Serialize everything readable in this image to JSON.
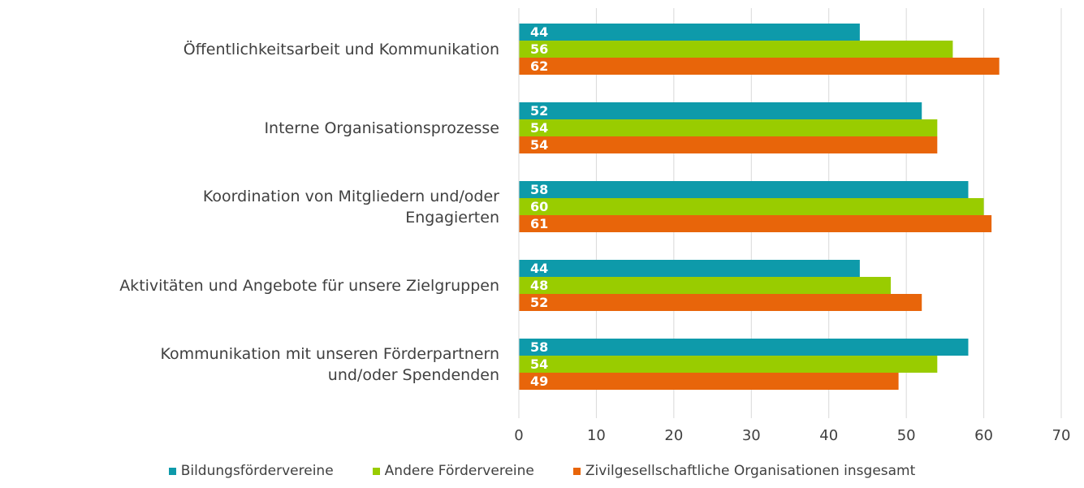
{
  "chart_data": {
    "type": "bar",
    "orientation": "horizontal",
    "categories": [
      "Öffentlichkeitsarbeit und Kommunikation",
      "Interne Organisationsprozesse",
      "Koordination von Mitgliedern und/oder\nEngagierten",
      "Aktivitäten und Angebote für unsere Zielgruppen",
      "Kommunikation mit unseren Förderpartnern\nund/oder Spendenden"
    ],
    "series": [
      {
        "name": "Bildungsfördervereine",
        "color": "#0e9aaa",
        "values": [
          44,
          52,
          58,
          44,
          58
        ]
      },
      {
        "name": "Andere Fördervereine",
        "color": "#99cc00",
        "values": [
          56,
          54,
          60,
          48,
          54
        ]
      },
      {
        "name": "Zivilgesellschaftliche Organisationen insgesamt",
        "color": "#e8650a",
        "values": [
          62,
          54,
          61,
          52,
          49
        ]
      }
    ],
    "xlim": [
      0,
      70
    ],
    "xticks": [
      0,
      10,
      20,
      30,
      40,
      50,
      60,
      70
    ],
    "grid": true,
    "legend": "bottom"
  }
}
